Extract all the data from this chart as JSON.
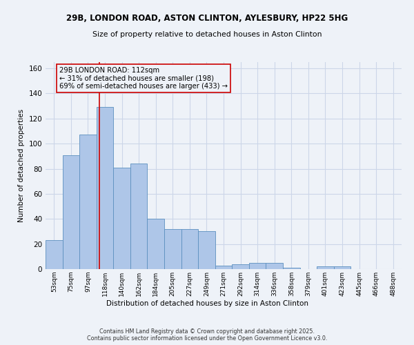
{
  "title_line1": "29B, LONDON ROAD, ASTON CLINTON, AYLESBURY, HP22 5HG",
  "title_line2": "Size of property relative to detached houses in Aston Clinton",
  "xlabel": "Distribution of detached houses by size in Aston Clinton",
  "ylabel": "Number of detached properties",
  "bin_labels": [
    "53sqm",
    "75sqm",
    "97sqm",
    "118sqm",
    "140sqm",
    "162sqm",
    "184sqm",
    "205sqm",
    "227sqm",
    "249sqm",
    "271sqm",
    "292sqm",
    "314sqm",
    "336sqm",
    "358sqm",
    "379sqm",
    "401sqm",
    "423sqm",
    "445sqm",
    "466sqm",
    "488sqm"
  ],
  "bar_values": [
    23,
    91,
    107,
    129,
    81,
    84,
    40,
    32,
    32,
    30,
    3,
    4,
    5,
    5,
    1,
    0,
    2,
    2,
    0,
    0,
    0
  ],
  "bar_color": "#aec6e8",
  "bar_edge_color": "#5b8fbe",
  "grid_color": "#ccd6e8",
  "background_color": "#eef2f8",
  "vline_color": "#cc0000",
  "annotation_text": "29B LONDON ROAD: 112sqm\n← 31% of detached houses are smaller (198)\n69% of semi-detached houses are larger (433) →",
  "footer_line1": "Contains HM Land Registry data © Crown copyright and database right 2025.",
  "footer_line2": "Contains public sector information licensed under the Open Government Licence v3.0.",
  "ylim": [
    0,
    165
  ],
  "yticks": [
    0,
    20,
    40,
    60,
    80,
    100,
    120,
    140,
    160
  ],
  "vline_pos": 2.68
}
